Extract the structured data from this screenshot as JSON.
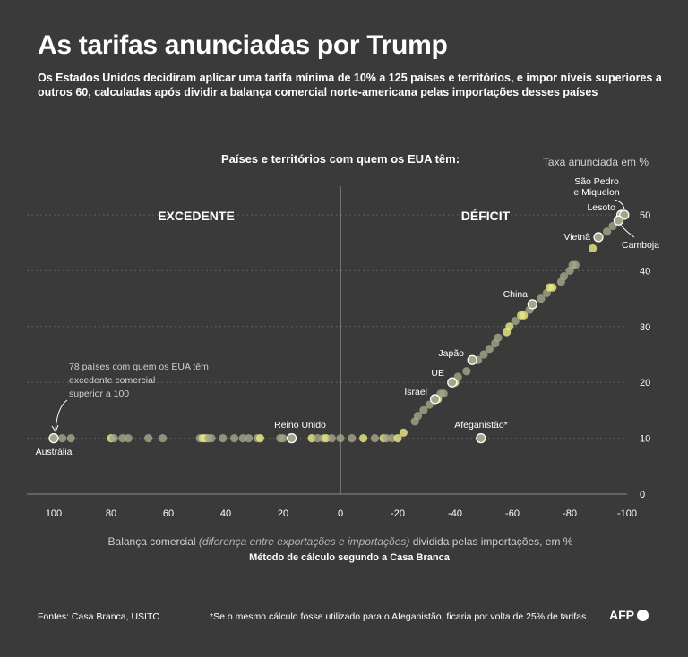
{
  "header": {
    "title": "As tarifas anunciadas por Trump",
    "subtitle": "Os Estados Unidos decidiram aplicar uma tarifa mínima de 10% a 125 países e territórios, e impor níveis superiores a outros 60, calculadas após dividir a balança comercial norte-americana pelas importações desses países"
  },
  "colors": {
    "background": "#3a3a3a",
    "dot": "#a5a58a",
    "dot_highlight": "#e8e886",
    "grid": "#5e5e5e",
    "axis_text": "#ffffff"
  },
  "chart_data": {
    "type": "scatter",
    "title": "Países e territórios com quem os EUA têm:",
    "ylabel": "Taxa anunciada em %",
    "xlabel_main": "Balança comercial",
    "xlabel_italic": "(diferença entre exportações e importações)",
    "xlabel_end": "dividida pelas importações, em %",
    "xlabel_method": "Método de cálculo segundo a Casa Branca",
    "xlim": [
      100,
      -100
    ],
    "ylim": [
      0,
      50
    ],
    "x_ticks": [
      100,
      80,
      60,
      40,
      20,
      0,
      -20,
      -40,
      -60,
      -80,
      -100
    ],
    "y_ticks": [
      0,
      10,
      20,
      30,
      40,
      50
    ],
    "regions": {
      "surplus": "EXCEDENTE",
      "deficit": "DÉFICIT"
    },
    "points": [
      {
        "x": 97,
        "y": 10
      },
      {
        "x": 94,
        "y": 10
      },
      {
        "x": 80,
        "y": 10,
        "h": true
      },
      {
        "x": 79,
        "y": 10
      },
      {
        "x": 76,
        "y": 10
      },
      {
        "x": 74,
        "y": 10
      },
      {
        "x": 67,
        "y": 10
      },
      {
        "x": 62,
        "y": 10
      },
      {
        "x": 49,
        "y": 10
      },
      {
        "x": 48,
        "y": 10,
        "h": true
      },
      {
        "x": 47,
        "y": 10,
        "h": true
      },
      {
        "x": 46,
        "y": 10
      },
      {
        "x": 45,
        "y": 10
      },
      {
        "x": 41,
        "y": 10
      },
      {
        "x": 37,
        "y": 10
      },
      {
        "x": 34,
        "y": 10
      },
      {
        "x": 32,
        "y": 10
      },
      {
        "x": 29,
        "y": 10
      },
      {
        "x": 28,
        "y": 10,
        "h": true
      },
      {
        "x": 21,
        "y": 10
      },
      {
        "x": 20,
        "y": 10
      },
      {
        "x": 10,
        "y": 10,
        "h": true
      },
      {
        "x": 8,
        "y": 10
      },
      {
        "x": 6,
        "y": 10
      },
      {
        "x": 5,
        "y": 10,
        "h": true
      },
      {
        "x": 3,
        "y": 10
      },
      {
        "x": 0,
        "y": 10
      },
      {
        "x": -4,
        "y": 10
      },
      {
        "x": -8,
        "y": 10,
        "h": true
      },
      {
        "x": -12,
        "y": 10
      },
      {
        "x": -15,
        "y": 10,
        "h": true
      },
      {
        "x": -16,
        "y": 10
      },
      {
        "x": -18,
        "y": 10
      },
      {
        "x": -20,
        "y": 10,
        "h": true
      },
      {
        "x": -22,
        "y": 11,
        "h": true
      },
      {
        "x": -26,
        "y": 13
      },
      {
        "x": -27,
        "y": 14
      },
      {
        "x": -29,
        "y": 15
      },
      {
        "x": -31,
        "y": 16
      },
      {
        "x": -33,
        "y": 17,
        "h": true
      },
      {
        "x": -34,
        "y": 17,
        "h": true
      },
      {
        "x": -35,
        "y": 18
      },
      {
        "x": -36,
        "y": 18
      },
      {
        "x": -40,
        "y": 20,
        "h": true
      },
      {
        "x": -41,
        "y": 21
      },
      {
        "x": -44,
        "y": 22
      },
      {
        "x": -48,
        "y": 24
      },
      {
        "x": -50,
        "y": 25
      },
      {
        "x": -52,
        "y": 26
      },
      {
        "x": -54,
        "y": 27
      },
      {
        "x": -55,
        "y": 28
      },
      {
        "x": -58,
        "y": 29,
        "h": true
      },
      {
        "x": -59,
        "y": 30,
        "h": true
      },
      {
        "x": -61,
        "y": 31
      },
      {
        "x": -63,
        "y": 32,
        "h": true
      },
      {
        "x": -64,
        "y": 32,
        "h": true
      },
      {
        "x": -66,
        "y": 33
      },
      {
        "x": -70,
        "y": 35
      },
      {
        "x": -72,
        "y": 36
      },
      {
        "x": -73,
        "y": 37,
        "h": true
      },
      {
        "x": -74,
        "y": 37,
        "h": true
      },
      {
        "x": -77,
        "y": 38
      },
      {
        "x": -78,
        "y": 39
      },
      {
        "x": -80,
        "y": 40
      },
      {
        "x": -81,
        "y": 41
      },
      {
        "x": -82,
        "y": 41
      },
      {
        "x": -88,
        "y": 44,
        "h": true
      },
      {
        "x": -93,
        "y": 47
      },
      {
        "x": -95,
        "y": 48
      },
      {
        "x": -97,
        "y": 49
      }
    ],
    "labeled_points": [
      {
        "name": "Austrália",
        "x": 100,
        "y": 10
      },
      {
        "name": "Reino Unido",
        "x": 17,
        "y": 10
      },
      {
        "name": "Afeganistão*",
        "x": -49,
        "y": 10
      },
      {
        "name": "Israel",
        "x": -33,
        "y": 17
      },
      {
        "name": "UE",
        "x": -39,
        "y": 20
      },
      {
        "name": "Japão",
        "x": -46,
        "y": 24
      },
      {
        "name": "China",
        "x": -67,
        "y": 34
      },
      {
        "name": "Vietnã",
        "x": -90,
        "y": 46
      },
      {
        "name": "Lesoto",
        "x": -98,
        "y": 50
      },
      {
        "name": "São Pedro e Miquelon",
        "x": -99,
        "y": 50
      },
      {
        "name": "Camboja",
        "x": -97,
        "y": 49
      }
    ],
    "annotation": "78 países com quem os EUA têm excedente comercial superior a 100",
    "labels": {
      "australia": "Austrália",
      "reino_unido": "Reino Unido",
      "afeganistao": "Afeganistão*",
      "israel": "Israel",
      "ue": "UE",
      "japao": "Japão",
      "china": "China",
      "vietna": "Vietnã",
      "lesoto": "Lesoto",
      "sao_pedro_1": "São Pedro",
      "sao_pedro_2": "e Miquelon",
      "camboja": "Camboja",
      "annot_1": "78 países com quem os EUA têm",
      "annot_2": "excedente comercial",
      "annot_3": "superior a 100"
    }
  },
  "footer": {
    "sources": "Fontes: Casa Branca, USITC",
    "note": "*Se o mesmo cálculo fosse utilizado para o Afeganistão, ficaria por volta de 25% de tarifas",
    "logo": "AFP"
  }
}
